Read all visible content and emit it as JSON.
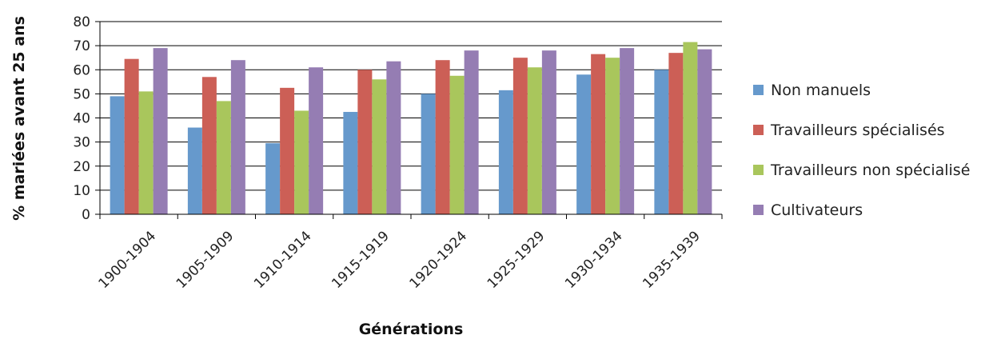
{
  "chart_data": {
    "type": "bar",
    "title": "",
    "xlabel": "Générations",
    "ylabel": "% mariées avant 25 ans",
    "ylim": [
      0,
      80
    ],
    "yticks": [
      0,
      10,
      20,
      30,
      40,
      50,
      60,
      70,
      80
    ],
    "grid": true,
    "legend_position": "right",
    "categories": [
      "1900-1904",
      "1905-1909",
      "1910-1914",
      "1915-1919",
      "1920-1924",
      "1925-1929",
      "1930-1934",
      "1935-1939"
    ],
    "series": [
      {
        "name": "Non manuels",
        "color": "#6699CC",
        "values": [
          49,
          36,
          29.5,
          42.5,
          50,
          51.5,
          58,
          60
        ]
      },
      {
        "name": "Travailleurs spécialisés",
        "color": "#CC5F56",
        "values": [
          64.5,
          57,
          52.5,
          60,
          64,
          65,
          66.5,
          67
        ]
      },
      {
        "name": "Travailleurs non spécialisé",
        "color": "#A9C65C",
        "values": [
          51,
          47,
          43,
          56,
          57.5,
          61,
          65,
          71.5
        ]
      },
      {
        "name": "Cultivateurs",
        "color": "#957DB3",
        "values": [
          69,
          64,
          61,
          63.5,
          68,
          68,
          69,
          68.5
        ]
      }
    ]
  }
}
